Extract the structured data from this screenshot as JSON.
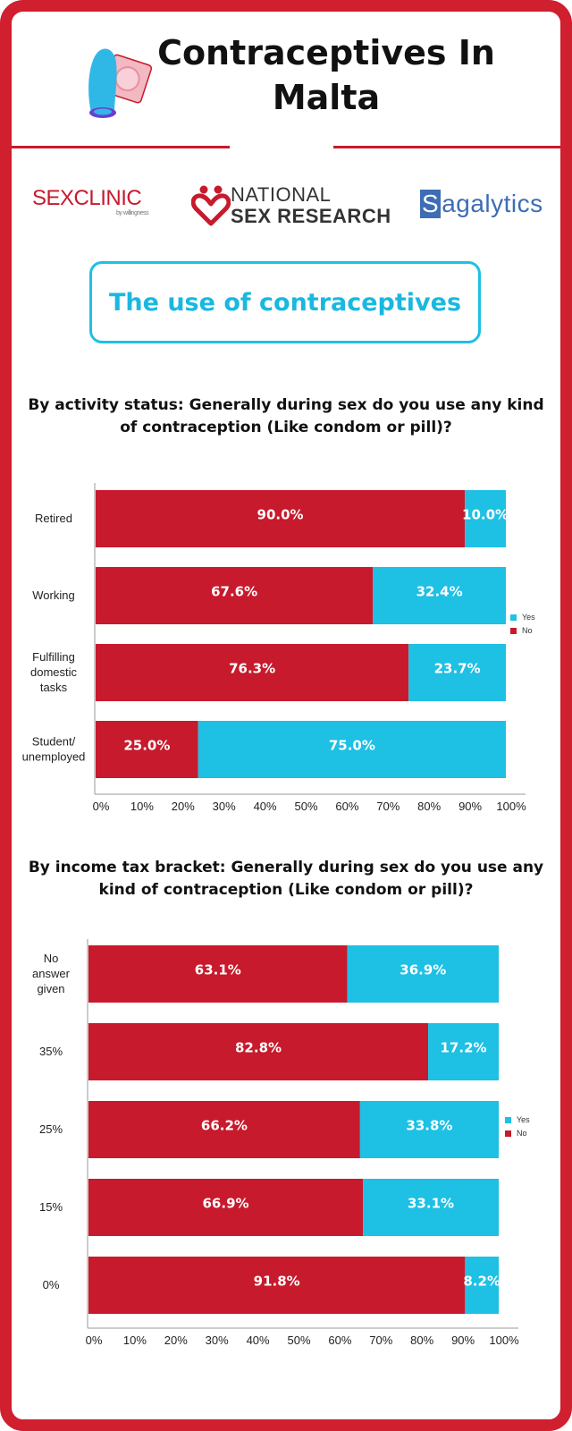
{
  "title": [
    "Contraceptives In",
    "Malta"
  ],
  "colors": {
    "frame": "#d01f2f",
    "no": "#c71a2c",
    "yes": "#1ec0e4",
    "accent": "#1ab8e0"
  },
  "logos": {
    "icon": "condom-and-wrapper-icon",
    "sexclinic": {
      "bold": "SEX",
      "thin": "CLINIC",
      "sub": "by willingness"
    },
    "national_sex_research": {
      "line1": "NATIONAL",
      "line2": "SEX RESEARCH",
      "icon": "heart-people-icon"
    },
    "sagalytics": {
      "first": "S",
      "rest": "agalytics"
    }
  },
  "section_title": "The use of contraceptives",
  "chart_data": [
    {
      "type": "bar",
      "orientation": "horizontal",
      "stacked": "percent",
      "title": "By activity status: Generally during sex do you use any kind of contraception (Like condom or pill)?",
      "categories": [
        "Retired",
        "Working",
        "Fulfilling domestic tasks",
        "Student/ unemployed"
      ],
      "series": [
        {
          "name": "No",
          "color": "#c71a2c",
          "values": [
            90.0,
            67.6,
            76.3,
            25.0
          ],
          "labels": [
            "90.0%",
            "67.6%",
            "76.3%",
            "25.0%"
          ]
        },
        {
          "name": "Yes",
          "color": "#1ec0e4",
          "values": [
            10.0,
            32.4,
            23.7,
            75.0
          ],
          "labels": [
            "10.0%",
            "32.4%",
            "23.7%",
            "75.0%"
          ]
        }
      ],
      "xticks": [
        "0%",
        "10%",
        "20%",
        "30%",
        "40%",
        "50%",
        "60%",
        "70%",
        "80%",
        "90%",
        "100%"
      ],
      "xlim": [
        0,
        100
      ],
      "legend": [
        "Yes",
        "No"
      ],
      "legend_position": "right"
    },
    {
      "type": "bar",
      "orientation": "horizontal",
      "stacked": "percent",
      "title": "By income tax bracket: Generally during sex do you use any kind of contraception (Like condom or pill)?",
      "categories": [
        "No answer given",
        "35%",
        "25%",
        "15%",
        "0%"
      ],
      "series": [
        {
          "name": "No",
          "color": "#c71a2c",
          "values": [
            63.1,
            82.8,
            66.2,
            66.9,
            91.8
          ],
          "labels": [
            "63.1%",
            "82.8%",
            "66.2%",
            "66.9%",
            "91.8%"
          ]
        },
        {
          "name": "Yes",
          "color": "#1ec0e4",
          "values": [
            36.9,
            17.2,
            33.8,
            33.1,
            8.2
          ],
          "labels": [
            "36.9%",
            "17.2%",
            "33.8%",
            "33.1%",
            "8.2%"
          ]
        }
      ],
      "xticks": [
        "0%",
        "10%",
        "20%",
        "30%",
        "40%",
        "50%",
        "60%",
        "70%",
        "80%",
        "90%",
        "100%"
      ],
      "xlim": [
        0,
        100
      ],
      "legend": [
        "Yes",
        "No"
      ],
      "legend_position": "right"
    }
  ]
}
